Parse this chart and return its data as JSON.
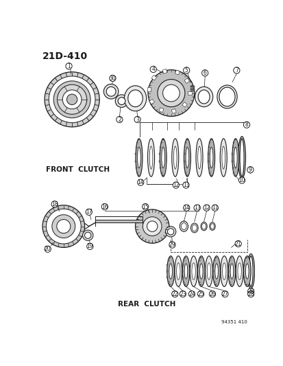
{
  "title": "21D-410",
  "watermark": "94351 410",
  "bg_color": "#ffffff",
  "front_clutch_label": "FRONT  CLUTCH",
  "rear_clutch_label": "REAR  CLUTCH",
  "line_color": "#1a1a1a",
  "fig_width": 4.14,
  "fig_height": 5.33,
  "dpi": 100
}
